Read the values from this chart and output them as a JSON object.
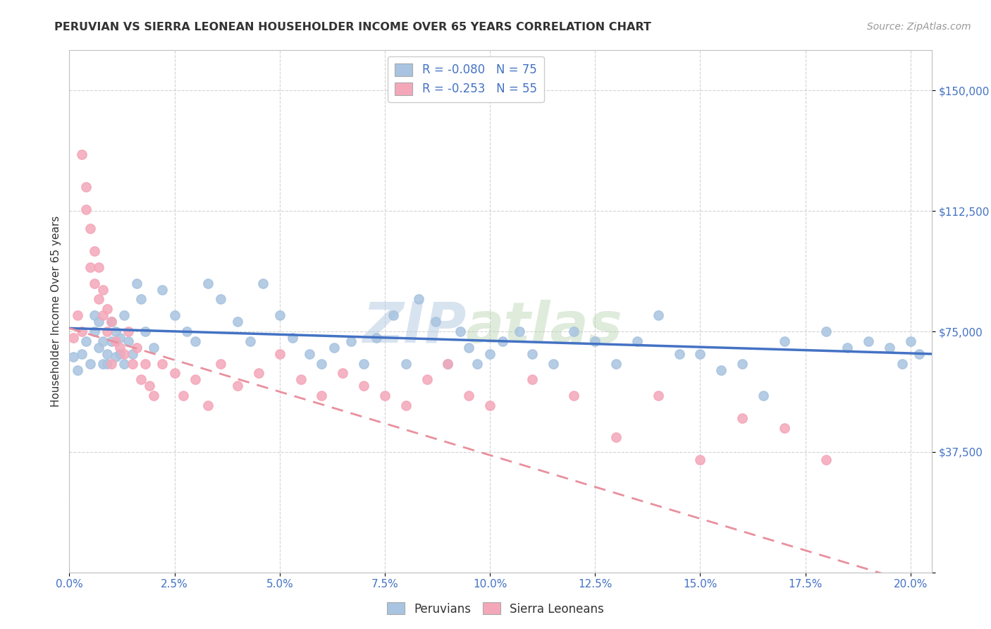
{
  "title": "PERUVIAN VS SIERRA LEONEAN HOUSEHOLDER INCOME OVER 65 YEARS CORRELATION CHART",
  "source": "Source: ZipAtlas.com",
  "ylabel": "Householder Income Over 65 years",
  "xlim": [
    0.0,
    0.205
  ],
  "ylim": [
    0,
    162500
  ],
  "yticks": [
    0,
    37500,
    75000,
    112500,
    150000
  ],
  "ytick_labels": [
    "",
    "$37,500",
    "$75,000",
    "$112,500",
    "$150,000"
  ],
  "xtick_labels": [
    "0.0%",
    "2.5%",
    "5.0%",
    "7.5%",
    "10.0%",
    "12.5%",
    "15.0%",
    "17.5%",
    "20.0%"
  ],
  "xticks": [
    0.0,
    0.025,
    0.05,
    0.075,
    0.1,
    0.125,
    0.15,
    0.175,
    0.2
  ],
  "peruvian_color": "#a8c4e0",
  "sierra_color": "#f4a7b9",
  "peruvian_line_color": "#4472c4",
  "sierra_line_color": "#e8909e",
  "R_peruvian": -0.08,
  "N_peruvian": 75,
  "R_sierra": -0.253,
  "N_sierra": 55,
  "watermark_zip": "ZIP",
  "watermark_atlas": "atlas",
  "legend_text_color": "#4472c4",
  "peruvian_x": [
    0.001,
    0.002,
    0.003,
    0.004,
    0.005,
    0.006,
    0.006,
    0.007,
    0.007,
    0.008,
    0.008,
    0.009,
    0.009,
    0.01,
    0.01,
    0.011,
    0.011,
    0.012,
    0.012,
    0.013,
    0.013,
    0.014,
    0.015,
    0.016,
    0.017,
    0.018,
    0.02,
    0.022,
    0.025,
    0.028,
    0.03,
    0.033,
    0.036,
    0.04,
    0.043,
    0.046,
    0.05,
    0.053,
    0.057,
    0.06,
    0.063,
    0.067,
    0.07,
    0.073,
    0.077,
    0.08,
    0.083,
    0.087,
    0.09,
    0.093,
    0.095,
    0.097,
    0.1,
    0.103,
    0.107,
    0.11,
    0.115,
    0.12,
    0.125,
    0.13,
    0.135,
    0.14,
    0.145,
    0.15,
    0.155,
    0.16,
    0.165,
    0.17,
    0.18,
    0.185,
    0.19,
    0.195,
    0.198,
    0.2,
    0.202
  ],
  "peruvian_y": [
    67000,
    63000,
    68000,
    72000,
    65000,
    75000,
    80000,
    70000,
    78000,
    65000,
    72000,
    68000,
    65000,
    78000,
    72000,
    67000,
    75000,
    68000,
    73000,
    65000,
    80000,
    72000,
    68000,
    90000,
    85000,
    75000,
    70000,
    88000,
    80000,
    75000,
    72000,
    90000,
    85000,
    78000,
    72000,
    90000,
    80000,
    73000,
    68000,
    65000,
    70000,
    72000,
    65000,
    73000,
    80000,
    65000,
    85000,
    78000,
    65000,
    75000,
    70000,
    65000,
    68000,
    72000,
    75000,
    68000,
    65000,
    75000,
    72000,
    65000,
    72000,
    80000,
    68000,
    68000,
    63000,
    65000,
    55000,
    72000,
    75000,
    70000,
    72000,
    70000,
    65000,
    72000,
    68000
  ],
  "sierra_x": [
    0.001,
    0.002,
    0.003,
    0.003,
    0.004,
    0.004,
    0.005,
    0.005,
    0.006,
    0.006,
    0.007,
    0.007,
    0.008,
    0.008,
    0.009,
    0.009,
    0.01,
    0.01,
    0.011,
    0.012,
    0.013,
    0.014,
    0.015,
    0.016,
    0.017,
    0.018,
    0.019,
    0.02,
    0.022,
    0.025,
    0.027,
    0.03,
    0.033,
    0.036,
    0.04,
    0.045,
    0.05,
    0.055,
    0.06,
    0.065,
    0.07,
    0.075,
    0.08,
    0.085,
    0.09,
    0.095,
    0.1,
    0.11,
    0.12,
    0.13,
    0.14,
    0.15,
    0.16,
    0.17,
    0.18
  ],
  "sierra_y": [
    73000,
    80000,
    75000,
    130000,
    120000,
    113000,
    107000,
    95000,
    100000,
    90000,
    95000,
    85000,
    80000,
    88000,
    75000,
    82000,
    78000,
    65000,
    72000,
    70000,
    68000,
    75000,
    65000,
    70000,
    60000,
    65000,
    58000,
    55000,
    65000,
    62000,
    55000,
    60000,
    52000,
    65000,
    58000,
    62000,
    68000,
    60000,
    55000,
    62000,
    58000,
    55000,
    52000,
    60000,
    65000,
    55000,
    52000,
    60000,
    55000,
    42000,
    55000,
    35000,
    48000,
    45000,
    35000
  ]
}
